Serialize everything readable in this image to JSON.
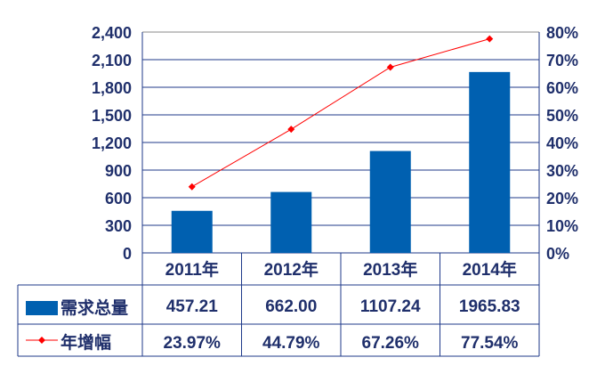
{
  "chart_data": {
    "type": "bar+line",
    "categories": [
      "2011年",
      "2012年",
      "2013年",
      "2014年"
    ],
    "series": [
      {
        "name": "需求总量",
        "type": "bar",
        "axis": "left",
        "values": [
          457.21,
          662.0,
          1107.24,
          1965.83
        ],
        "labels": [
          "457.21",
          "662.00",
          "1107.24",
          "1965.83"
        ],
        "color": "#0060b0"
      },
      {
        "name": "年增幅",
        "type": "line",
        "axis": "right",
        "values": [
          23.97,
          44.79,
          67.26,
          77.54
        ],
        "labels": [
          "23.97%",
          "44.79%",
          "67.26%",
          "77.54%"
        ],
        "color": "#ff0000"
      }
    ],
    "y_left": {
      "range": [
        0,
        2400
      ],
      "ticks": [
        "0",
        "300",
        "600",
        "900",
        "1,200",
        "1,500",
        "1,800",
        "2,100",
        "2,400"
      ]
    },
    "y_right": {
      "range": [
        0,
        80
      ],
      "unit": "%",
      "ticks": [
        "0%",
        "10%",
        "20%",
        "30%",
        "40%",
        "50%",
        "60%",
        "70%",
        "80%"
      ]
    },
    "grid": true,
    "legend": "data-table",
    "axis_color": "#1f3a8a"
  }
}
